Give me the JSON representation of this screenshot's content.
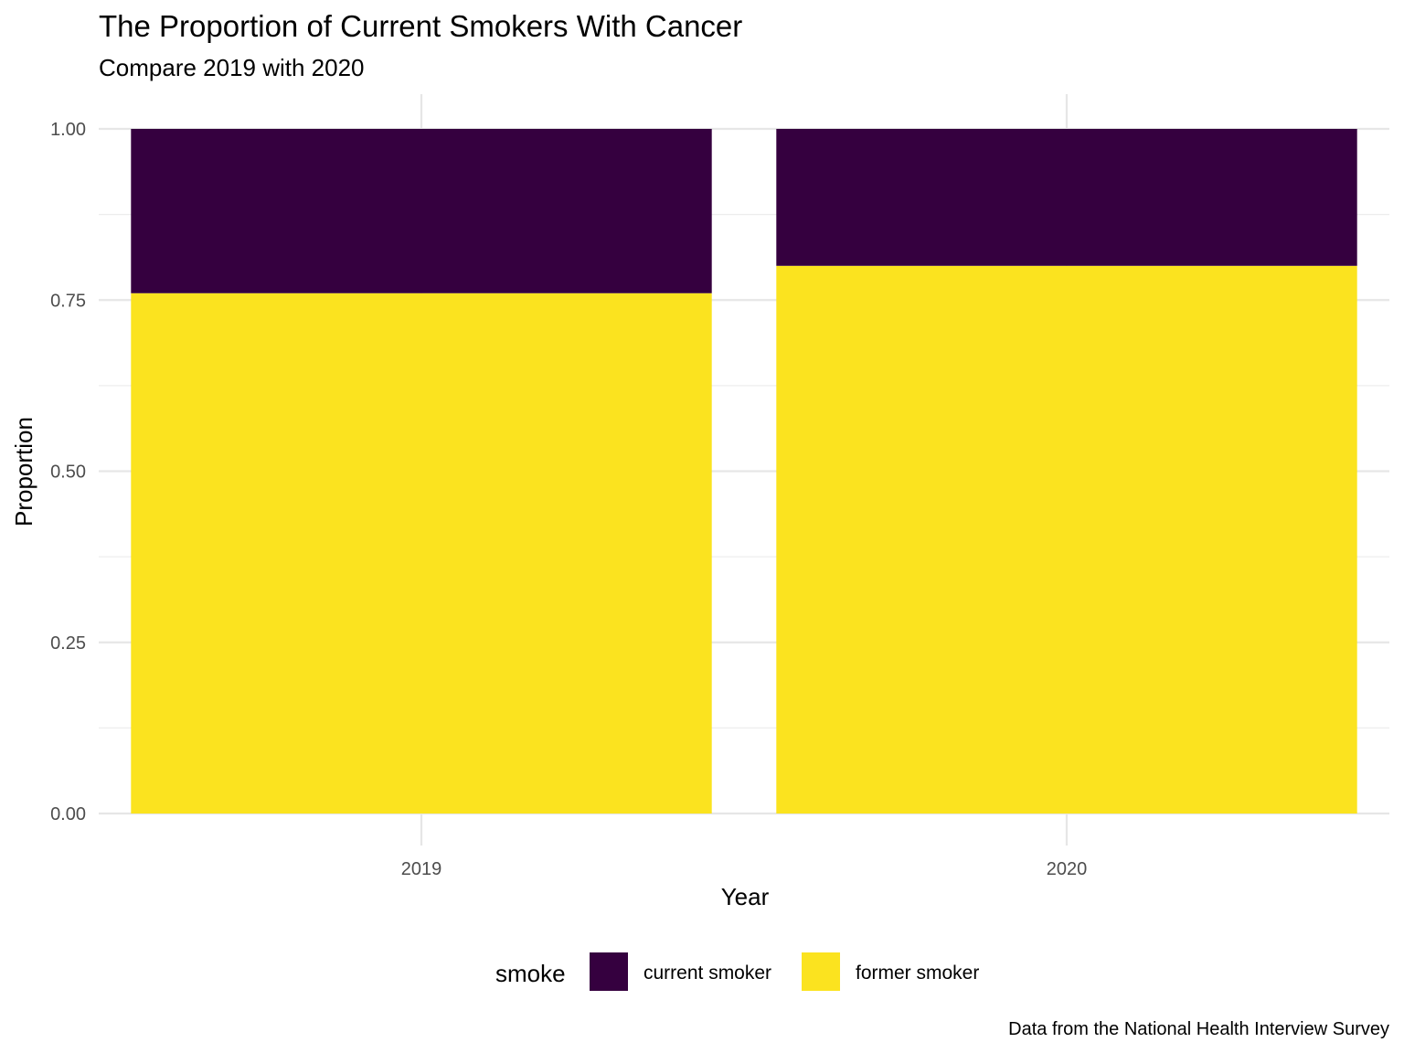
{
  "chart_data": {
    "type": "bar",
    "stacked": true,
    "title": "The Proportion of Current Smokers With Cancer",
    "subtitle": "Compare 2019 with 2020",
    "xlabel": "Year",
    "ylabel": "Proportion",
    "caption": "Data from the National Health Interview Survey",
    "categories": [
      "2019",
      "2020"
    ],
    "ylim": [
      0,
      1
    ],
    "yticks": [
      "0.00",
      "0.25",
      "0.50",
      "0.75",
      "1.00"
    ],
    "series": [
      {
        "name": "current smoker",
        "color": "#35003f",
        "values": [
          0.24,
          0.2
        ]
      },
      {
        "name": "former smoker",
        "color": "#fbe31f",
        "values": [
          0.76,
          0.8
        ]
      }
    ],
    "legend": {
      "title": "smoke",
      "position": "bottom"
    },
    "grid": true
  }
}
